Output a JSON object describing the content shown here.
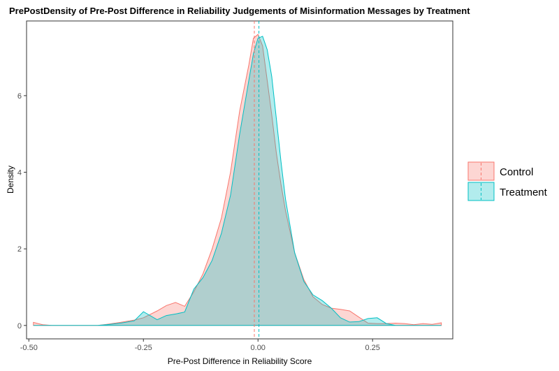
{
  "chart_data": {
    "type": "area",
    "title": "PrePostDensity of Pre-Post Difference in Reliability Judgements of Misinformation Messages by Treatment",
    "xlabel": "Pre-Post Difference in Reliability Score",
    "ylabel": "Density",
    "xlim": [
      -0.505,
      0.425
    ],
    "ylim": [
      -0.35,
      7.95
    ],
    "x_ticks": [
      -0.5,
      -0.25,
      0.0,
      0.25
    ],
    "x_tick_labels": [
      "-0.50",
      "-0.25",
      "0.00",
      "0.25"
    ],
    "y_ticks": [
      0,
      2,
      4,
      6
    ],
    "y_tick_labels": [
      "0",
      "2",
      "4",
      "6"
    ],
    "grid": false,
    "legend_position": "right",
    "series": [
      {
        "name": "Control",
        "color": "#F8766D",
        "mean": -0.008,
        "x": [
          -0.49,
          -0.47,
          -0.45,
          -0.4,
          -0.35,
          -0.33,
          -0.3,
          -0.27,
          -0.25,
          -0.22,
          -0.2,
          -0.18,
          -0.16,
          -0.14,
          -0.12,
          -0.1,
          -0.08,
          -0.06,
          -0.04,
          -0.02,
          -0.01,
          0.0,
          0.01,
          0.02,
          0.03,
          0.04,
          0.05,
          0.06,
          0.08,
          0.1,
          0.12,
          0.14,
          0.16,
          0.18,
          0.2,
          0.22,
          0.24,
          0.26,
          0.28,
          0.3,
          0.32,
          0.34,
          0.36,
          0.38,
          0.4
        ],
        "y": [
          0.08,
          0.02,
          0.0,
          0.0,
          0.0,
          0.03,
          0.08,
          0.14,
          0.2,
          0.38,
          0.52,
          0.6,
          0.5,
          0.88,
          1.35,
          2.0,
          2.8,
          4.0,
          5.6,
          6.8,
          7.5,
          7.6,
          7.3,
          6.4,
          5.5,
          4.5,
          3.7,
          3.0,
          1.9,
          1.2,
          0.75,
          0.55,
          0.45,
          0.42,
          0.38,
          0.22,
          0.06,
          0.05,
          0.05,
          0.06,
          0.05,
          0.02,
          0.05,
          0.03,
          0.07
        ]
      },
      {
        "name": "Treatment",
        "color": "#00BFC4",
        "mean": 0.002,
        "x": [
          -0.49,
          -0.47,
          -0.45,
          -0.4,
          -0.35,
          -0.33,
          -0.3,
          -0.27,
          -0.25,
          -0.22,
          -0.2,
          -0.18,
          -0.16,
          -0.14,
          -0.12,
          -0.1,
          -0.08,
          -0.06,
          -0.04,
          -0.02,
          -0.01,
          0.0,
          0.01,
          0.02,
          0.03,
          0.04,
          0.05,
          0.06,
          0.08,
          0.1,
          0.12,
          0.14,
          0.16,
          0.18,
          0.2,
          0.22,
          0.24,
          0.26,
          0.28,
          0.3,
          0.32,
          0.34,
          0.36,
          0.38,
          0.4
        ],
        "y": [
          0.0,
          0.0,
          0.0,
          0.0,
          0.0,
          0.02,
          0.06,
          0.12,
          0.36,
          0.15,
          0.26,
          0.3,
          0.35,
          0.95,
          1.25,
          1.7,
          2.4,
          3.4,
          5.0,
          6.4,
          7.1,
          7.5,
          7.55,
          7.2,
          6.5,
          5.4,
          4.3,
          3.3,
          1.9,
          1.15,
          0.8,
          0.65,
          0.45,
          0.2,
          0.09,
          0.1,
          0.18,
          0.2,
          0.05,
          0.0,
          0.0,
          0.0,
          0.0,
          0.0,
          0.0
        ]
      }
    ]
  }
}
